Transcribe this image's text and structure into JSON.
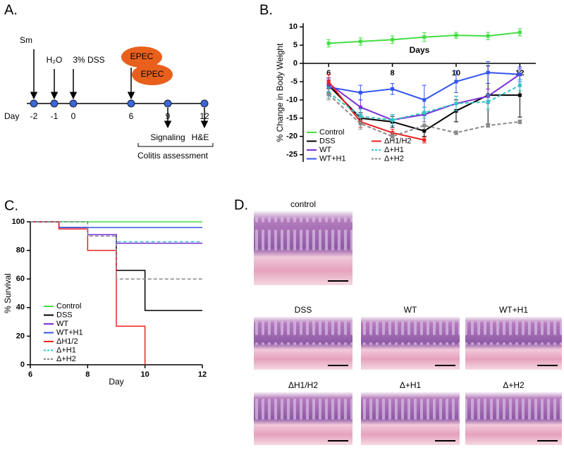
{
  "panel_a": {
    "label": "A.",
    "treatments": [
      "Sm",
      "H₂O",
      "3% DSS"
    ],
    "infections": [
      "EPEC",
      "EPEC"
    ],
    "day_label": "Day",
    "days": [
      "-2",
      "-1",
      "0",
      "6",
      "9",
      "12"
    ],
    "assays": [
      "Signaling",
      "H&E"
    ],
    "assessment": "Colitis assessment"
  },
  "chart_data": [
    {
      "panel": "B.",
      "type": "line",
      "xlabel": "Days",
      "ylabel": "% Change in Body Weight",
      "x": [
        6,
        7,
        8,
        9,
        10,
        11,
        12
      ],
      "xlim": [
        5.2,
        12.5
      ],
      "ylim": [
        -27,
        11
      ],
      "xticks": [
        6,
        8,
        10,
        12
      ],
      "yticks": [
        10,
        5,
        0,
        -5,
        -10,
        -15,
        -20,
        -25
      ],
      "series": [
        {
          "name": "Control",
          "color": "#44dd44",
          "dashed": false,
          "values": [
            5.5,
            6,
            6.5,
            7.2,
            7.7,
            7.5,
            8.5
          ],
          "errors": [
            1,
            1,
            1,
            1.2,
            0.8,
            1,
            1
          ]
        },
        {
          "name": "DSS",
          "color": "#000000",
          "dashed": false,
          "values": [
            -6,
            -15,
            -16,
            -18.5,
            -13,
            -8.7,
            -8.7
          ],
          "errors": [
            2,
            1.5,
            1.5,
            1.5,
            3,
            8,
            6
          ]
        },
        {
          "name": "WT",
          "color": "#7b2fd6",
          "dashed": false,
          "values": [
            -5.5,
            -12,
            -15.5,
            -14,
            -11,
            -9,
            -3
          ],
          "errors": [
            1.5,
            2,
            1.5,
            2,
            2,
            2,
            1.5
          ]
        },
        {
          "name": "WT+H1",
          "color": "#3355ee",
          "dashed": false,
          "values": [
            -6.5,
            -8,
            -7,
            -10,
            -5,
            -2.5,
            -3
          ],
          "errors": [
            2,
            2,
            1.5,
            4,
            3,
            3,
            2
          ]
        },
        {
          "name": "ΔH1/H2",
          "color": "#ee2222",
          "dashed": false,
          "values": [
            -5,
            -16,
            -19,
            -21,
            null,
            null,
            null
          ],
          "errors": [
            2,
            1.5,
            1,
            0.8,
            null,
            null,
            null
          ]
        },
        {
          "name": "Δ+H1",
          "color": "#33c4c4",
          "dashed": true,
          "values": [
            -8,
            -14.5,
            -15.5,
            -13.5,
            -11,
            -10.5,
            -6
          ],
          "errors": [
            1.5,
            2,
            1.5,
            1.5,
            2,
            2,
            1.5
          ]
        },
        {
          "name": "Δ+H2",
          "color": "#888888",
          "dashed": true,
          "values": [
            -8.5,
            -16.5,
            -20,
            -17,
            -19,
            -17,
            -16
          ],
          "errors": [
            1.5,
            1.5,
            1,
            1,
            0.5,
            0.5,
            0.5
          ]
        }
      ]
    },
    {
      "panel": "C.",
      "type": "step",
      "xlabel": "Day",
      "ylabel": "% Survival",
      "x": [
        6,
        7,
        8,
        9,
        10,
        11,
        12
      ],
      "xlim": [
        6,
        12
      ],
      "ylim": [
        0,
        100
      ],
      "xticks": [
        6,
        8,
        10,
        12
      ],
      "yticks": [
        0,
        20,
        40,
        60,
        80,
        100
      ],
      "series": [
        {
          "name": "Control",
          "color": "#44dd44",
          "dashed": false,
          "values": [
            100,
            100,
            100,
            100,
            100,
            100,
            100
          ]
        },
        {
          "name": "DSS",
          "color": "#000000",
          "dashed": false,
          "values": [
            100,
            96,
            91,
            66,
            38,
            38,
            38
          ]
        },
        {
          "name": "WT",
          "color": "#7b2fd6",
          "dashed": false,
          "values": [
            100,
            96,
            91,
            85,
            85,
            85,
            85
          ]
        },
        {
          "name": "WT+H1",
          "color": "#3355ee",
          "dashed": false,
          "values": [
            100,
            96,
            96,
            96,
            96,
            96,
            96
          ]
        },
        {
          "name": "ΔH1/2",
          "color": "#ee2222",
          "dashed": false,
          "values": [
            100,
            95,
            80,
            27,
            0,
            null,
            null
          ]
        },
        {
          "name": "Δ+H1",
          "color": "#33c4c4",
          "dashed": true,
          "values": [
            100,
            100,
            90,
            86,
            86,
            86,
            86
          ]
        },
        {
          "name": "Δ+H2",
          "color": "#888888",
          "dashed": true,
          "values": [
            100,
            100,
            90,
            60,
            60,
            60,
            60
          ]
        }
      ]
    }
  ],
  "panel_d": {
    "label": "D.",
    "images": [
      "control",
      "DSS",
      "WT",
      "WT+H1",
      "ΔH1/H2",
      "Δ+H1",
      "Δ+H2"
    ]
  }
}
